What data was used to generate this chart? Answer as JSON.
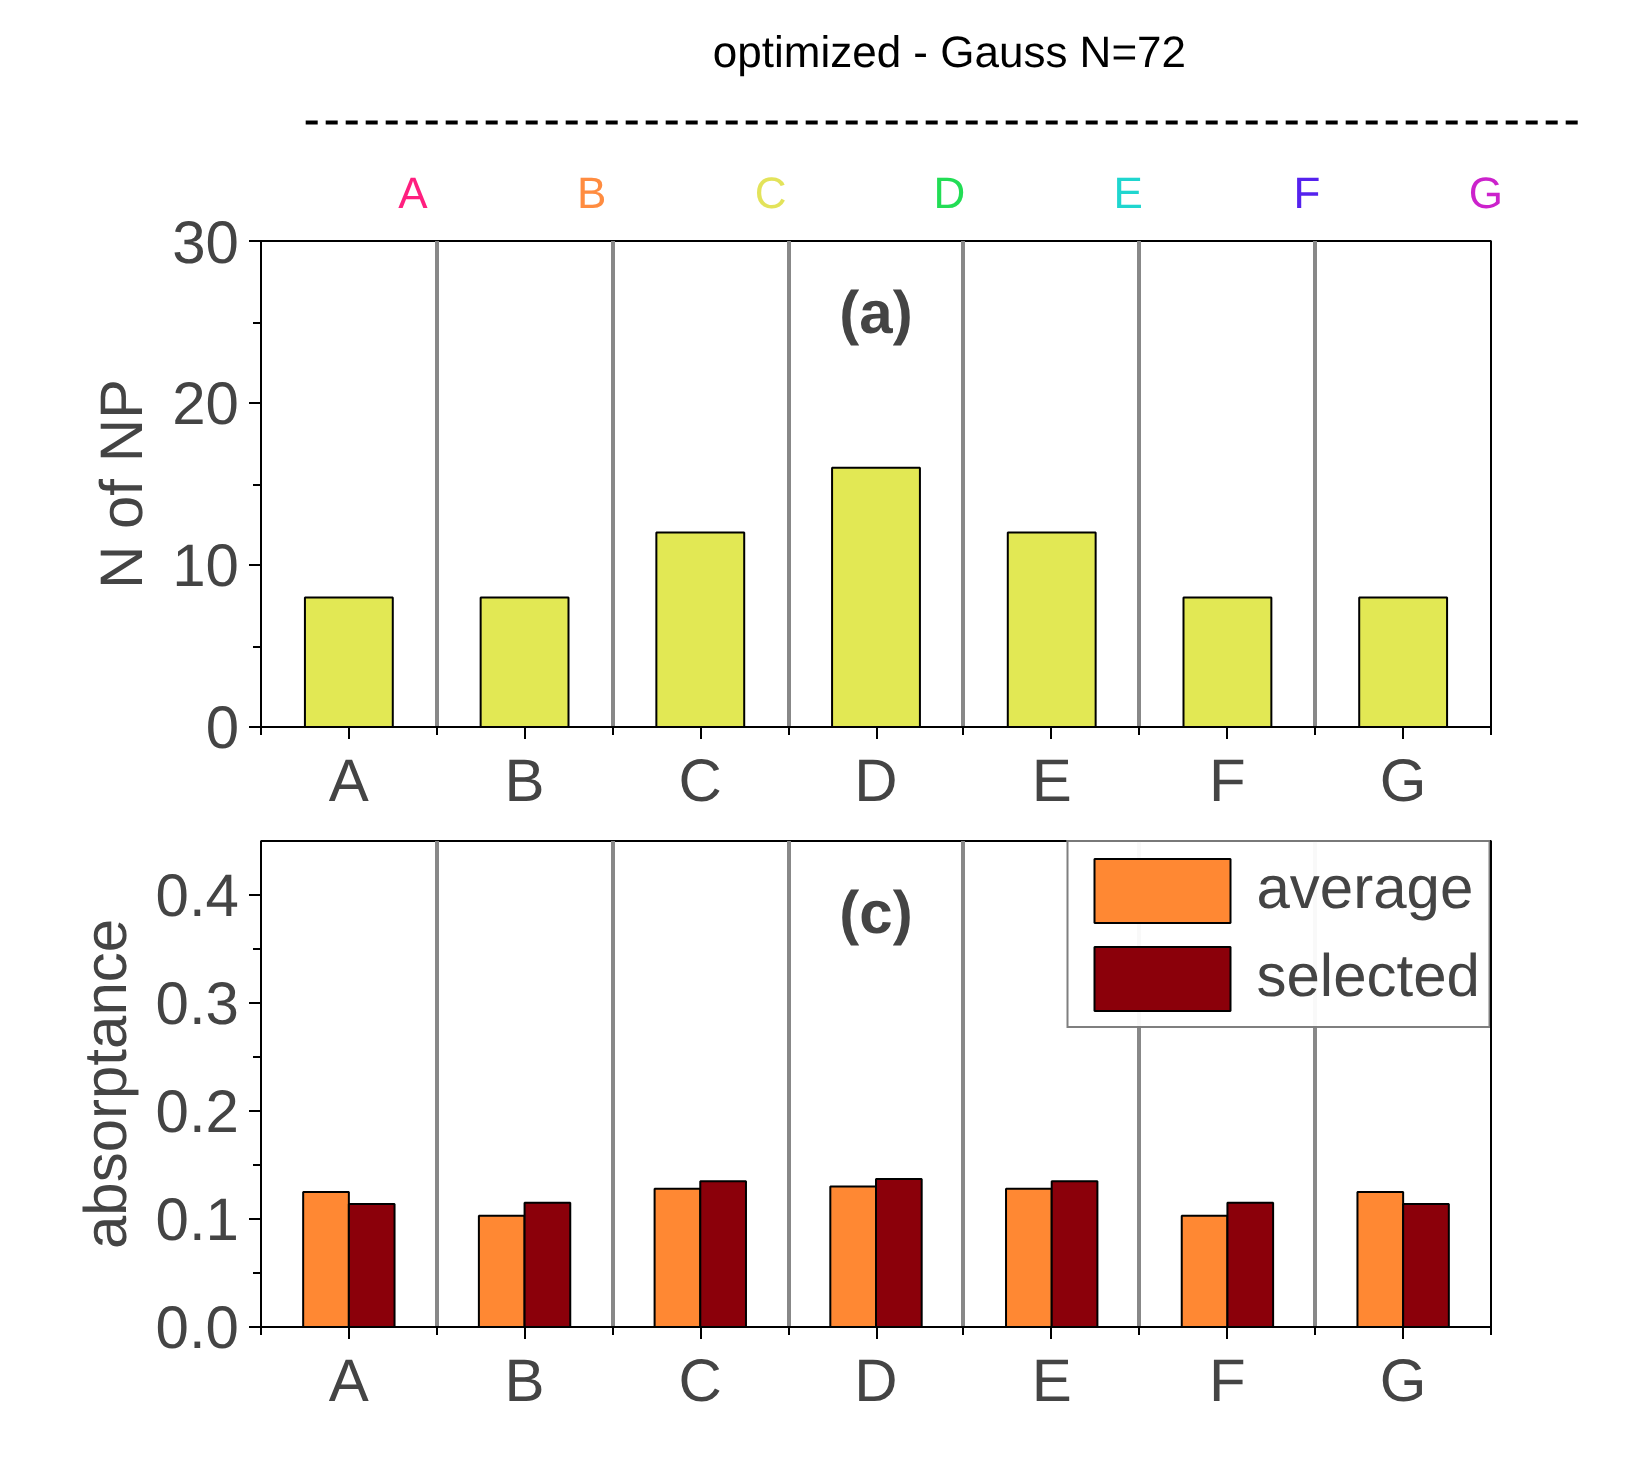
{
  "chart_data": [
    {
      "type": "other",
      "title": "optimized - Gauss N=72",
      "categories": [
        "A",
        "B",
        "C",
        "D",
        "E",
        "F",
        "G"
      ],
      "colors": [
        "#ff1f7f",
        "#ff8c40",
        "#e3e35a",
        "#22dd55",
        "#1fd6cf",
        "#5522ee",
        "#cc22cc"
      ]
    },
    {
      "type": "bar",
      "title": "(a)",
      "ylabel": "N of NP",
      "categories": [
        "A",
        "B",
        "C",
        "D",
        "E",
        "F",
        "G"
      ],
      "values": [
        8,
        8,
        12,
        16,
        12,
        8,
        8
      ],
      "color": "#e2e854",
      "ylim": [
        0,
        30
      ],
      "yticks": [
        0,
        10,
        20,
        30
      ],
      "grid": "x"
    },
    {
      "type": "bar",
      "title": "(c)",
      "ylabel": "absorptance",
      "categories": [
        "A",
        "B",
        "C",
        "D",
        "E",
        "F",
        "G"
      ],
      "series": [
        {
          "name": "average",
          "color": "#ff8833",
          "values": [
            0.125,
            0.103,
            0.128,
            0.13,
            0.128,
            0.103,
            0.125
          ]
        },
        {
          "name": "selected",
          "color": "#8b000a",
          "values": [
            0.114,
            0.115,
            0.135,
            0.137,
            0.135,
            0.115,
            0.114
          ]
        }
      ],
      "ylim": [
        0,
        0.45
      ],
      "yticks": [
        {
          "value": 0,
          "label": "0.0"
        },
        0.1,
        0.2,
        0.3,
        0.4
      ],
      "grid": "x",
      "legend": "top right"
    }
  ]
}
